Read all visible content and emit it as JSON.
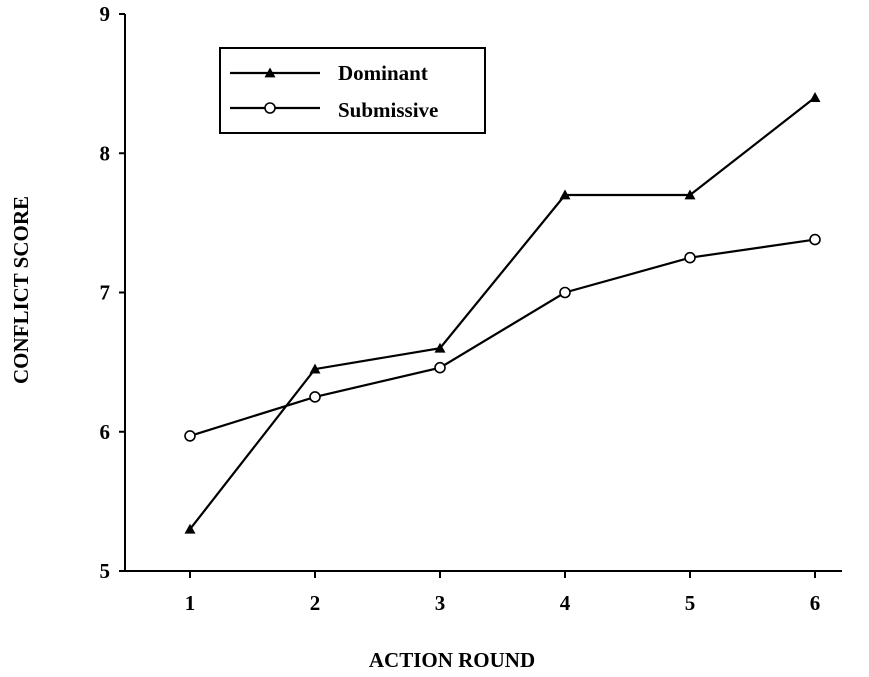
{
  "chart_data": {
    "type": "line",
    "title": "",
    "xlabel": "ACTION ROUND",
    "ylabel": "CONFLICT SCORE",
    "x": [
      1,
      2,
      3,
      4,
      5,
      6
    ],
    "x_tick_labels": [
      "1",
      "2",
      "3",
      "4",
      "5",
      "6"
    ],
    "ylim": [
      5,
      9
    ],
    "y_ticks": [
      5,
      6,
      7,
      8,
      9
    ],
    "y_tick_labels": [
      "5",
      "6",
      "7",
      "8",
      "9"
    ],
    "grid": false,
    "legend_position": "top-left",
    "series": [
      {
        "name": "Dominant",
        "marker": "triangle",
        "color": "#000000",
        "values": [
          5.3,
          6.45,
          6.6,
          7.7,
          7.7,
          8.4
        ]
      },
      {
        "name": "Submissive",
        "marker": "circle",
        "color": "#000000",
        "values": [
          5.97,
          6.25,
          6.46,
          7.0,
          7.25,
          7.38
        ]
      }
    ]
  }
}
